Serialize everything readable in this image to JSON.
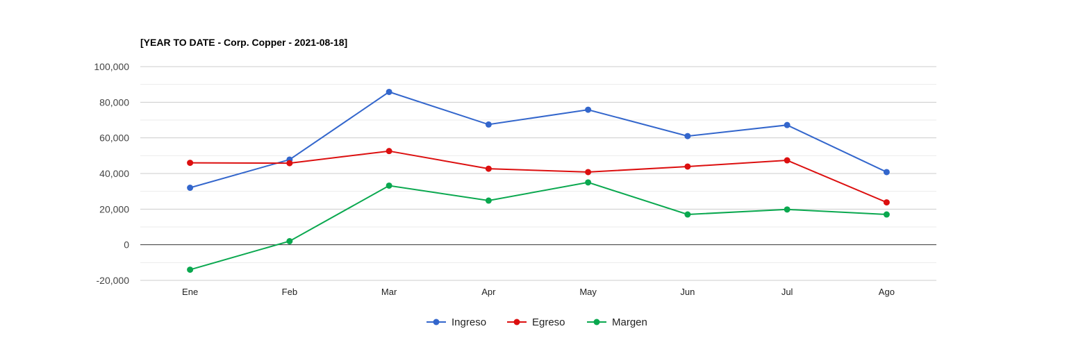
{
  "chart_data": {
    "type": "line",
    "title": "[YEAR TO DATE - Corp. Copper - 2021-08-18]",
    "categories": [
      "Ene",
      "Feb",
      "Mar",
      "Apr",
      "May",
      "Jun",
      "Jul",
      "Ago"
    ],
    "ylim": [
      -20000,
      100000
    ],
    "yticks": [
      -20000,
      0,
      20000,
      40000,
      60000,
      80000,
      100000
    ],
    "ytick_labels": [
      "-20,000",
      "0",
      "20,000",
      "40,000",
      "60,000",
      "80,000",
      "100,000"
    ],
    "grid": true,
    "legend": "bottom",
    "series": [
      {
        "name": "Ingreso",
        "color": "#3366cc",
        "values": [
          32000,
          47800,
          85800,
          67500,
          75800,
          61000,
          67200,
          40800
        ]
      },
      {
        "name": "Egreso",
        "color": "#dc0f0f",
        "values": [
          46000,
          45800,
          52600,
          42700,
          40800,
          43900,
          47400,
          23800
        ]
      },
      {
        "name": "Margen",
        "color": "#0aa84f",
        "values": [
          -14000,
          2000,
          33200,
          24800,
          35000,
          17000,
          19800,
          17000
        ]
      }
    ]
  }
}
